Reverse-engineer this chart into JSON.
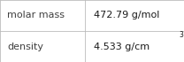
{
  "rows": [
    {
      "label": "molar mass",
      "value": "472.79 g/mol",
      "superscript": null
    },
    {
      "label": "density",
      "value": "4.533 g/cm",
      "superscript": "3"
    }
  ],
  "bg_color": "#ffffff",
  "border_color": "#bbbbbb",
  "label_color": "#404040",
  "value_color": "#1a1a1a",
  "font_size": 8.0,
  "sup_font_size": 5.5,
  "col_split": 0.46
}
